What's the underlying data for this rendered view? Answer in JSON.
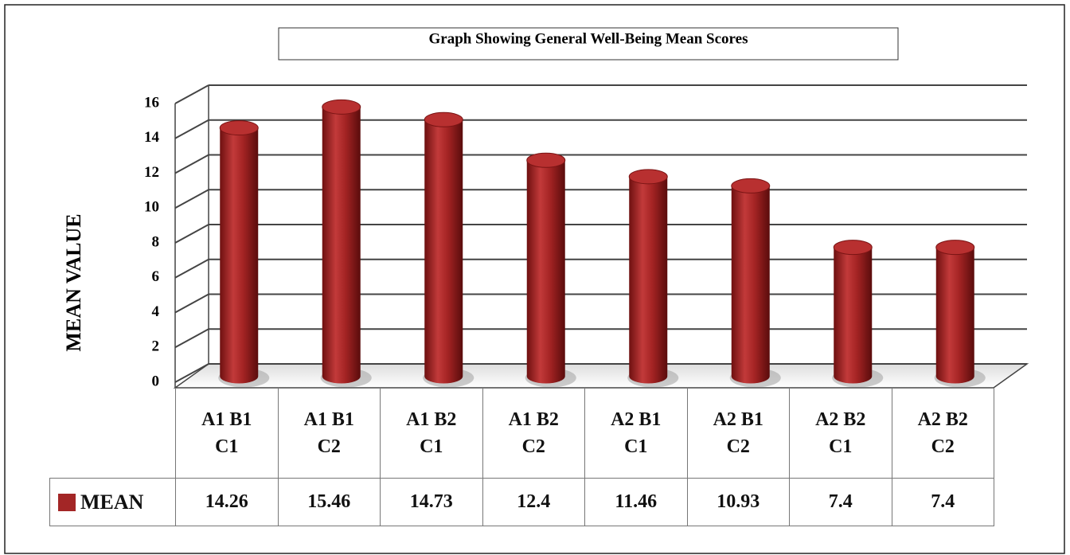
{
  "chart_data": {
    "type": "bar",
    "title": "Graph Showing General Well-Being Mean Scores",
    "y_label": "MEAN VALUE",
    "categories": [
      "A1 B1 C1",
      "A1 B1 C2",
      "A1 B2 C1",
      "A1 B2 C2",
      "A2 B1 C1",
      "A2 B1 C2",
      "A2 B2 C1",
      "A2 B2 C2"
    ],
    "series": [
      {
        "name": "MEAN",
        "color": "#a32626",
        "values": [
          14.26,
          15.46,
          14.73,
          12.4,
          11.46,
          10.93,
          7.4,
          7.4
        ]
      }
    ],
    "ylim": [
      0,
      16
    ],
    "yticks": [
      0,
      2,
      4,
      6,
      8,
      10,
      12,
      14,
      16
    ],
    "grid": true
  }
}
